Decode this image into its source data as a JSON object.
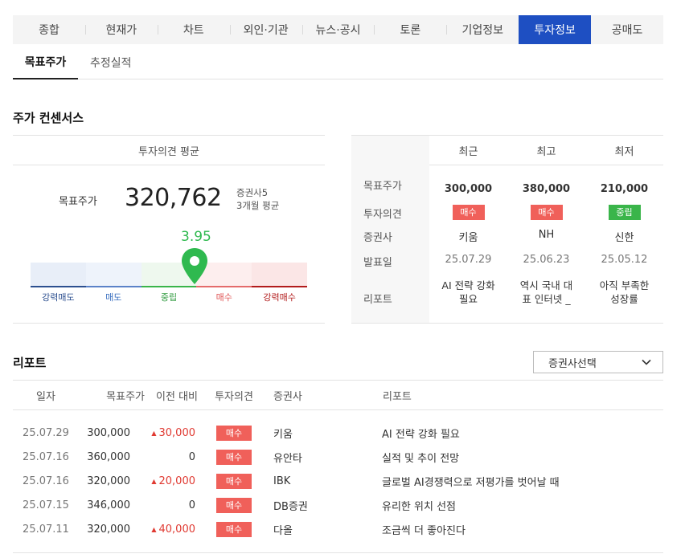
{
  "tabs": [
    {
      "label": "종합",
      "active": false
    },
    {
      "label": "현재가",
      "active": false
    },
    {
      "label": "차트",
      "active": false
    },
    {
      "label": "외인·기관",
      "active": false
    },
    {
      "label": "뉴스·공시",
      "active": false
    },
    {
      "label": "토론",
      "active": false
    },
    {
      "label": "기업정보",
      "active": false
    },
    {
      "label": "투자정보",
      "active": true
    },
    {
      "label": "공매도",
      "active": false
    }
  ],
  "subtabs": [
    {
      "label": "목표주가",
      "active": true
    },
    {
      "label": "추정실적",
      "active": false
    }
  ],
  "consensus": {
    "title": "주가 컨센서스",
    "avg_header": "투자의견 평균",
    "target_label": "목표주가",
    "target_value": "320,762",
    "brokers_count": "증권사5",
    "period": "3개월 평균",
    "score": "3.95",
    "score_fraction": 0.5875,
    "gauge": [
      {
        "label": "강력매도",
        "bg": "#e8eef8",
        "line": "#2c4f8f",
        "text": "#2c4f8f"
      },
      {
        "label": "매도",
        "bg": "#eef3fb",
        "line": "#5b82c8",
        "text": "#3a6fc0"
      },
      {
        "label": "중립",
        "bg": "#eef8ee",
        "line": "#3ab54a",
        "text": "#2e9a3e"
      },
      {
        "label": "매수",
        "bg": "#fdeeee",
        "line": "#e46b6b",
        "text": "#e05555"
      },
      {
        "label": "강력매수",
        "bg": "#fbe6e6",
        "line": "#b21c1c",
        "text": "#b21c1c"
      }
    ],
    "accent": "#2fb94f"
  },
  "compare": {
    "columns": [
      "최근",
      "최고",
      "최저"
    ],
    "row_labels": [
      "목표주가",
      "투자의견",
      "증권사",
      "발표일",
      "리포트"
    ],
    "items": [
      {
        "price": "300,000",
        "opinion": "매수",
        "opinion_type": "buy",
        "broker": "키움",
        "date": "25.07.29",
        "report": "AI 전략 강화 필요"
      },
      {
        "price": "380,000",
        "opinion": "매수",
        "opinion_type": "buy",
        "broker": "NH",
        "date": "25.06.23",
        "report": "역시 국내 대표 인터넷 _"
      },
      {
        "price": "210,000",
        "opinion": "중립",
        "opinion_type": "neutral",
        "broker": "신한",
        "date": "25.05.12",
        "report": "아직 부족한 성장률"
      }
    ]
  },
  "report": {
    "title": "리포트",
    "dropdown_label": "증권사선택",
    "columns": [
      "일자",
      "목표주가",
      "이전 대비",
      "투자의견",
      "증권사",
      "리포트"
    ],
    "rows": [
      {
        "date": "25.07.29",
        "price": "300,000",
        "change": "30,000",
        "change_dir": "up",
        "opinion": "매수",
        "broker": "키움",
        "title": "AI 전략 강화 필요"
      },
      {
        "date": "25.07.16",
        "price": "360,000",
        "change": "0",
        "change_dir": "flat",
        "opinion": "매수",
        "broker": "유안타",
        "title": "실적 및 추이 전망"
      },
      {
        "date": "25.07.16",
        "price": "320,000",
        "change": "20,000",
        "change_dir": "up",
        "opinion": "매수",
        "broker": "IBK",
        "title": "글로벌 AI경쟁력으로 저평가를 벗어날 때"
      },
      {
        "date": "25.07.15",
        "price": "346,000",
        "change": "0",
        "change_dir": "flat",
        "opinion": "매수",
        "broker": "DB증권",
        "title": "유리한 위치 선점"
      },
      {
        "date": "25.07.11",
        "price": "320,000",
        "change": "40,000",
        "change_dir": "up",
        "opinion": "매수",
        "broker": "다올",
        "title": "조금씩 더 좋아진다"
      }
    ]
  }
}
